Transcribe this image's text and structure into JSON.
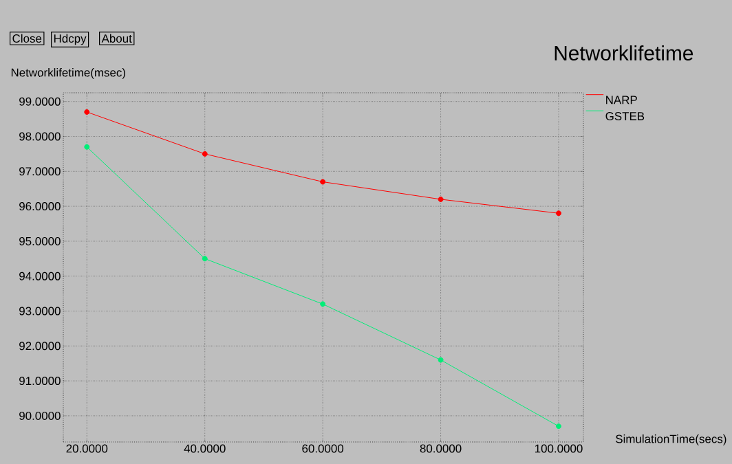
{
  "chart_data": {
    "type": "line",
    "title": "Networklifetime",
    "xlabel": "SimulationTime(secs)",
    "ylabel": "Networklifetime(msec)",
    "annotations": [
      "Close",
      "Hdcpy",
      "About"
    ],
    "x": [
      20,
      40,
      60,
      80,
      100
    ],
    "series": [
      {
        "name": "NARP",
        "color": "#ff0000",
        "values": [
          98.7,
          97.5,
          96.7,
          96.2,
          95.8
        ]
      },
      {
        "name": "GSTEB",
        "color": "#00ee77",
        "values": [
          97.7,
          94.5,
          93.2,
          91.6,
          89.7
        ]
      }
    ],
    "xlim": [
      16,
      104.2
    ],
    "ylim": [
      89.25,
      99.25
    ],
    "xticks": [
      {
        "value": 20,
        "label": "20.0000"
      },
      {
        "value": 40,
        "label": "40.0000"
      },
      {
        "value": 60,
        "label": "60.0000"
      },
      {
        "value": 80,
        "label": "80.0000"
      },
      {
        "value": 100,
        "label": "100.0000"
      }
    ],
    "yticks": [
      {
        "value": 90,
        "label": "90.0000"
      },
      {
        "value": 91,
        "label": "91.0000"
      },
      {
        "value": 92,
        "label": "92.0000"
      },
      {
        "value": 93,
        "label": "93.0000"
      },
      {
        "value": 94,
        "label": "94.0000"
      },
      {
        "value": 95,
        "label": "95.0000"
      },
      {
        "value": 96,
        "label": "96.0000"
      },
      {
        "value": 97,
        "label": "97.0000"
      },
      {
        "value": 98,
        "label": "98.0000"
      },
      {
        "value": 99,
        "label": "99.0000"
      }
    ],
    "grid": true,
    "legend": "right",
    "marker": "circle",
    "line_style": "solid"
  }
}
